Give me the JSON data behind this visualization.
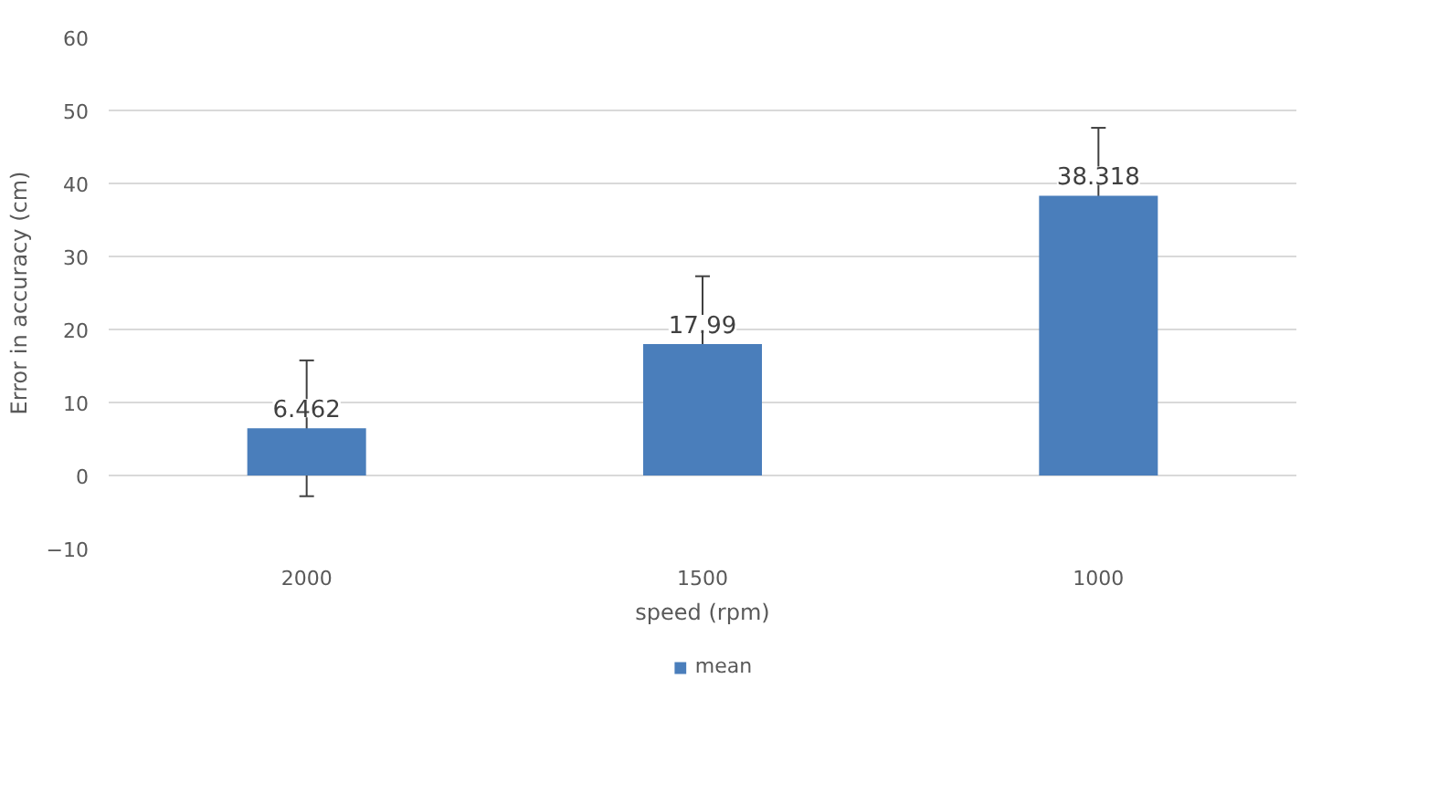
{
  "chart_data": {
    "type": "bar",
    "xlabel": "speed (rpm)",
    "ylabel": "Error in accuracy (cm)",
    "categories": [
      "2000",
      "1500",
      "1000"
    ],
    "series": [
      {
        "name": "mean",
        "color": "#4a7ebb",
        "values": [
          6.462,
          17.99,
          38.318
        ],
        "errors": [
          9.3,
          9.3,
          9.3
        ]
      }
    ],
    "ylim": [
      -10,
      60
    ],
    "yticks": [
      -10,
      0,
      10,
      20,
      30,
      40,
      50,
      60
    ],
    "grid": "y",
    "legend": "bottom",
    "data_labels": true
  }
}
